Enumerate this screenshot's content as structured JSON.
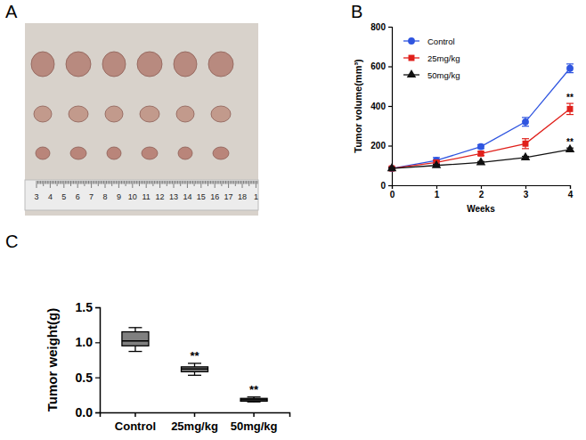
{
  "chart_data": [
    {
      "panel": "B",
      "type": "line",
      "x_label": "Weeks",
      "y_label": "Tumor volume(mm³)",
      "x": [
        0,
        1,
        2,
        3,
        4
      ],
      "xlim": [
        0,
        4
      ],
      "xticks": [
        0,
        1,
        2,
        3,
        4
      ],
      "ylim": [
        0,
        800
      ],
      "yticks": [
        0,
        200,
        400,
        600,
        800
      ],
      "legend": "upper left",
      "series": [
        {
          "name": "Control",
          "color": "#2f55e0",
          "marker": "circle",
          "values": [
            85,
            125,
            195,
            320,
            590
          ],
          "errors": [
            6,
            15,
            10,
            22,
            22
          ]
        },
        {
          "name": "25mg/kg",
          "color": "#e0201b",
          "marker": "square",
          "values": [
            85,
            115,
            160,
            210,
            385
          ],
          "errors": [
            6,
            10,
            10,
            25,
            28
          ]
        },
        {
          "name": "50mg/kg",
          "color": "#111111",
          "marker": "triangle",
          "values": [
            85,
            100,
            115,
            140,
            180
          ],
          "errors": [
            5,
            5,
            5,
            6,
            8
          ]
        }
      ],
      "annotations": [
        {
          "series": 1,
          "x": 4,
          "text": "**"
        },
        {
          "series": 2,
          "x": 4,
          "text": "**"
        }
      ]
    },
    {
      "panel": "C",
      "type": "box",
      "y_label": "Tumor weight(g)",
      "categories": [
        "Control",
        "25mg/kg",
        "50mg/kg"
      ],
      "ylim": [
        0,
        1.5
      ],
      "yticks": [
        {
          "value": 0,
          "label": "0.0"
        },
        {
          "value": 0.5,
          "label": "0.5"
        },
        {
          "value": 1,
          "label": "1.0"
        },
        {
          "value": 1.5,
          "label": "1.5"
        }
      ],
      "color": "#808080",
      "boxes": [
        {
          "min": 0.87,
          "q1": 0.95,
          "median": 1.02,
          "q3": 1.15,
          "max": 1.21
        },
        {
          "min": 0.53,
          "q1": 0.58,
          "median": 0.62,
          "q3": 0.65,
          "max": 0.7
        },
        {
          "min": 0.15,
          "q1": 0.16,
          "median": 0.18,
          "q3": 0.2,
          "max": 0.22
        }
      ],
      "annotations": [
        {
          "category": 1,
          "text": "**"
        },
        {
          "category": 2,
          "text": "**"
        }
      ]
    }
  ],
  "photo": {
    "panel": "A",
    "ruler_labels": [
      "3",
      "4",
      "5",
      "6",
      "7",
      "8",
      "9",
      "10",
      "11",
      "12",
      "13",
      "14",
      "15",
      "16",
      "17",
      "18",
      "1"
    ]
  }
}
